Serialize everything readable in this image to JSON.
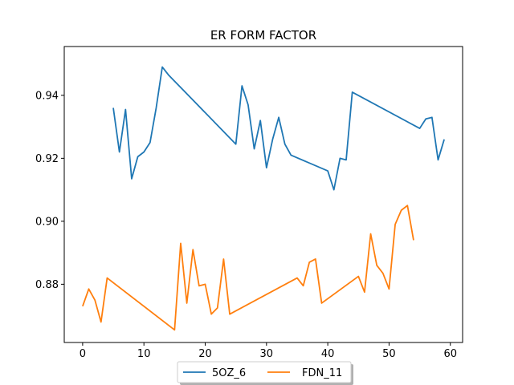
{
  "chart_data": {
    "type": "line",
    "title": "ER FORM FACTOR",
    "xlabel": "",
    "ylabel": "",
    "xlim": [
      -3,
      62
    ],
    "ylim": [
      0.8615,
      0.9555
    ],
    "xticks": [
      0,
      10,
      20,
      30,
      40,
      50,
      60
    ],
    "xtick_labels": [
      "0",
      "10",
      "20",
      "30",
      "40",
      "50",
      "60"
    ],
    "yticks": [
      0.88,
      0.9,
      0.92,
      0.94
    ],
    "ytick_labels": [
      "0.88",
      "0.90",
      "0.92",
      "0.94"
    ],
    "grid": false,
    "legend_position": "bottom-center",
    "series": [
      {
        "name": "5OZ_6",
        "color": "#1f77b4",
        "x": [
          5,
          6,
          7,
          8,
          9,
          10,
          11,
          12,
          13,
          14,
          25,
          26,
          27,
          28,
          29,
          30,
          31,
          32,
          33,
          34,
          40,
          41,
          42,
          43,
          44,
          55,
          56,
          57,
          58,
          59
        ],
        "y": [
          0.936,
          0.922,
          0.9355,
          0.9135,
          0.9205,
          0.922,
          0.925,
          0.936,
          0.949,
          0.9465,
          0.9245,
          0.943,
          0.937,
          0.923,
          0.932,
          0.917,
          0.926,
          0.933,
          0.9245,
          0.921,
          0.916,
          0.91,
          0.92,
          0.9195,
          0.941,
          0.9295,
          0.9325,
          0.933,
          0.9195,
          0.926
        ]
      },
      {
        "name": "FDN_11",
        "color": "#ff7f0e",
        "x": [
          0,
          1,
          2,
          3,
          4,
          15,
          16,
          17,
          18,
          19,
          20,
          21,
          22,
          23,
          24,
          35,
          36,
          37,
          38,
          39,
          45,
          46,
          47,
          48,
          49,
          50,
          51,
          52,
          53,
          54
        ],
        "y": [
          0.873,
          0.8785,
          0.875,
          0.868,
          0.882,
          0.8655,
          0.893,
          0.874,
          0.891,
          0.8795,
          0.88,
          0.8705,
          0.8725,
          0.888,
          0.8705,
          0.882,
          0.8795,
          0.887,
          0.888,
          0.874,
          0.8825,
          0.8775,
          0.896,
          0.886,
          0.8835,
          0.8785,
          0.899,
          0.9035,
          0.905,
          0.894
        ]
      }
    ]
  }
}
